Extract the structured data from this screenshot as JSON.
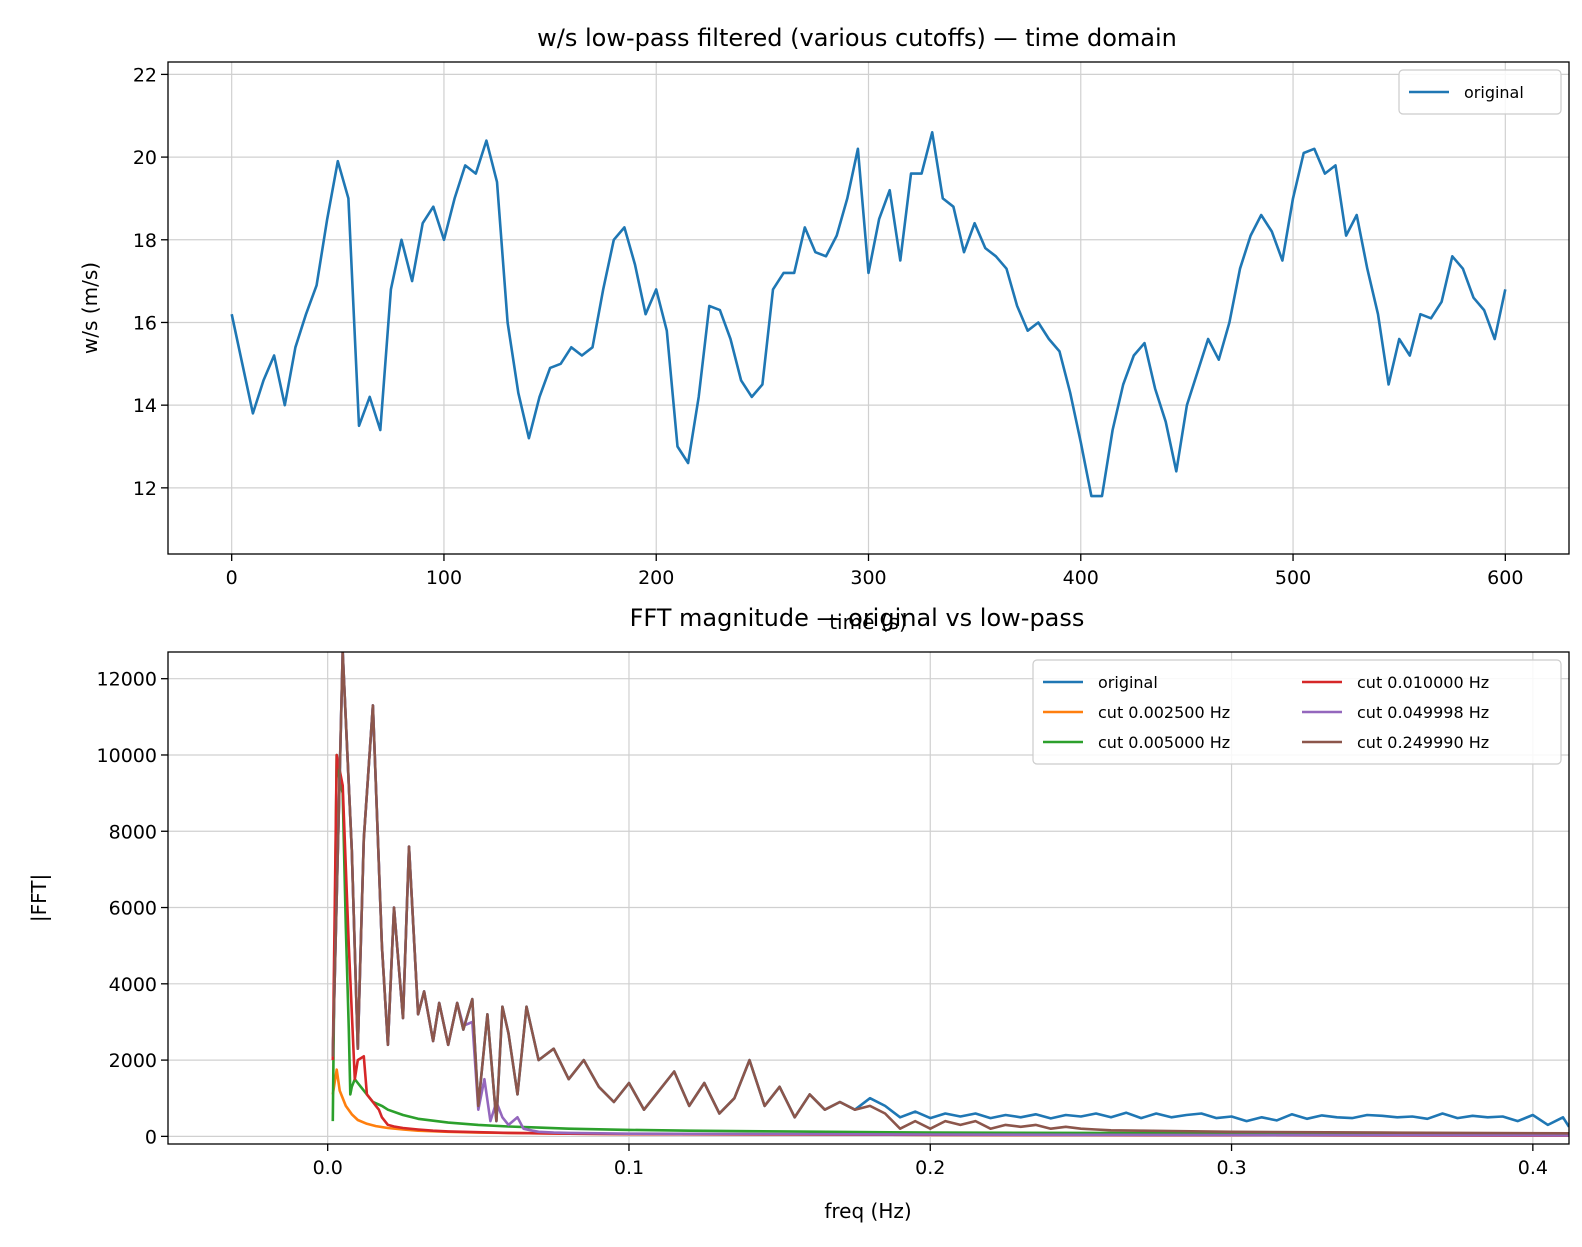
{
  "chart_data": [
    {
      "type": "line",
      "title": "w/s low-pass filtered (various cutoffs) — time domain",
      "xlabel": "time (s)",
      "ylabel": "w/s (m/s)",
      "xlim": [
        -30,
        630
      ],
      "ylim": [
        10.4,
        22.3
      ],
      "xticks": [
        0,
        100,
        200,
        300,
        400,
        500,
        600
      ],
      "yticks": [
        12,
        14,
        16,
        18,
        20,
        22
      ],
      "grid": true,
      "legend_position": "top-right",
      "series": [
        {
          "name": "original",
          "color": "#1f77b4",
          "x": [
            0,
            5,
            10,
            15,
            20,
            25,
            30,
            35,
            40,
            45,
            50,
            55,
            60,
            65,
            70,
            75,
            80,
            85,
            90,
            95,
            100,
            105,
            110,
            115,
            120,
            125,
            130,
            135,
            140,
            145,
            150,
            155,
            160,
            165,
            170,
            175,
            180,
            185,
            190,
            195,
            200,
            205,
            210,
            215,
            220,
            225,
            230,
            235,
            240,
            245,
            250,
            255,
            260,
            265,
            270,
            275,
            280,
            285,
            290,
            295,
            300,
            305,
            310,
            315,
            320,
            325,
            330,
            335,
            340,
            345,
            350,
            355,
            360,
            365,
            370,
            375,
            380,
            385,
            390,
            395,
            400,
            405,
            410,
            415,
            420,
            425,
            430,
            435,
            440,
            445,
            450,
            455,
            460,
            465,
            470,
            475,
            480,
            485,
            490,
            495,
            500,
            505,
            510,
            515,
            520,
            525,
            530,
            535,
            540,
            545,
            550,
            555,
            560,
            565,
            570,
            575,
            580,
            585,
            590,
            595,
            600
          ],
          "values": [
            16.2,
            15.0,
            13.8,
            14.6,
            15.2,
            14.0,
            15.4,
            16.2,
            16.9,
            18.5,
            19.9,
            19.0,
            13.5,
            14.2,
            13.4,
            16.8,
            18.0,
            17.0,
            18.4,
            18.8,
            18.0,
            19.0,
            19.8,
            19.6,
            20.4,
            19.4,
            16.0,
            14.3,
            13.2,
            14.2,
            14.9,
            15.0,
            15.4,
            15.2,
            15.4,
            16.8,
            18.0,
            18.3,
            17.4,
            16.2,
            16.8,
            15.8,
            13.0,
            12.6,
            14.2,
            16.4,
            16.3,
            15.6,
            14.6,
            14.2,
            14.5,
            16.8,
            17.2,
            17.2,
            18.3,
            17.7,
            17.6,
            18.1,
            19.0,
            20.2,
            17.2,
            18.5,
            19.2,
            17.5,
            19.6,
            19.6,
            20.6,
            19.0,
            18.8,
            17.7,
            18.4,
            17.8,
            17.6,
            17.3,
            16.4,
            15.8,
            16.0,
            15.6,
            15.3,
            14.3,
            13.1,
            11.8,
            11.8,
            13.4,
            14.5,
            15.2,
            15.5,
            14.4,
            13.6,
            12.4,
            14.0,
            14.8,
            15.6,
            15.1,
            16.0,
            17.3,
            18.1,
            18.6,
            18.2,
            17.5,
            19.0,
            20.1,
            20.2,
            19.6,
            19.8,
            18.1,
            18.6,
            17.3,
            16.2,
            14.5,
            15.6,
            15.2,
            16.2,
            16.1,
            16.5,
            17.6,
            17.3,
            16.6,
            16.3,
            15.6,
            16.8
          ]
        }
      ]
    },
    {
      "type": "line",
      "title": "FFT magnitude — original vs low-pass",
      "xlabel": "freq (Hz)",
      "ylabel": "|FFT|",
      "xlim": [
        -0.053,
        0.412
      ],
      "ylim": [
        -200,
        12700
      ],
      "xticks": [
        0.0,
        0.1,
        0.2,
        0.3,
        0.4
      ],
      "xtick_labels": [
        "0.0",
        "0.1",
        "0.2",
        "0.3",
        "0.4"
      ],
      "yticks": [
        0,
        2000,
        4000,
        6000,
        8000,
        10000,
        12000
      ],
      "grid": true,
      "legend_position": "top-right",
      "legend_columns": 2,
      "series": [
        {
          "name": "original",
          "color": "#1f77b4",
          "x": [
            0.0017,
            0.005,
            0.008,
            0.01,
            0.012,
            0.015,
            0.018,
            0.02,
            0.022,
            0.025,
            0.027,
            0.03,
            0.032,
            0.035,
            0.037,
            0.04,
            0.043,
            0.045,
            0.048,
            0.05,
            0.053,
            0.056,
            0.058,
            0.06,
            0.063,
            0.066,
            0.07,
            0.075,
            0.08,
            0.085,
            0.09,
            0.095,
            0.1,
            0.105,
            0.11,
            0.115,
            0.12,
            0.125,
            0.13,
            0.135,
            0.14,
            0.145,
            0.15,
            0.155,
            0.16,
            0.165,
            0.17,
            0.175,
            0.18,
            0.185,
            0.19,
            0.195,
            0.2,
            0.205,
            0.21,
            0.215,
            0.22,
            0.225,
            0.23,
            0.235,
            0.24,
            0.245,
            0.25,
            0.255,
            0.26,
            0.265,
            0.27,
            0.275,
            0.28,
            0.285,
            0.29,
            0.295,
            0.3,
            0.305,
            0.31,
            0.315,
            0.32,
            0.325,
            0.33,
            0.335,
            0.34,
            0.345,
            0.35,
            0.355,
            0.36,
            0.365,
            0.37,
            0.375,
            0.38,
            0.385,
            0.39,
            0.395,
            0.4,
            0.405,
            0.41,
            0.412
          ],
          "values": [
            2100,
            12700,
            7500,
            2300,
            7800,
            11300,
            5000,
            2400,
            6000,
            3100,
            7600,
            3200,
            3800,
            2500,
            3500,
            2400,
            3500,
            2800,
            3600,
            800,
            3200,
            400,
            3400,
            2700,
            1100,
            3400,
            2000,
            2300,
            1500,
            2000,
            1300,
            900,
            1400,
            700,
            1200,
            1700,
            800,
            1400,
            600,
            1000,
            2000,
            800,
            1300,
            500,
            1100,
            700,
            900,
            700,
            1000,
            800,
            500,
            650,
            480,
            600,
            520,
            600,
            480,
            560,
            500,
            580,
            470,
            560,
            520,
            600,
            500,
            620,
            480,
            600,
            500,
            560,
            600,
            480,
            520,
            400,
            500,
            420,
            580,
            460,
            550,
            500,
            480,
            560,
            540,
            500,
            520,
            460,
            600,
            480,
            540,
            500,
            520,
            400,
            560,
            300,
            500,
            250
          ]
        },
        {
          "name": "cut 0.002500 Hz",
          "color": "#ff7f0e",
          "x": [
            0.0017,
            0.003,
            0.004,
            0.006,
            0.008,
            0.01,
            0.013,
            0.016,
            0.02,
            0.025,
            0.03,
            0.04,
            0.05,
            0.06,
            0.07,
            0.08,
            0.1,
            0.15,
            0.2,
            0.25,
            0.3,
            0.35,
            0.412
          ],
          "values": [
            1100,
            1750,
            1200,
            800,
            580,
            430,
            330,
            270,
            220,
            180,
            150,
            120,
            100,
            90,
            80,
            70,
            60,
            50,
            40,
            35,
            30,
            25,
            20
          ]
        },
        {
          "name": "cut 0.005000 Hz",
          "color": "#2ca02c",
          "x": [
            0.0017,
            0.003,
            0.004,
            0.005,
            0.006,
            0.007,
            0.0075,
            0.008,
            0.009,
            0.01,
            0.011,
            0.012,
            0.013,
            0.015,
            0.018,
            0.02,
            0.025,
            0.03,
            0.04,
            0.05,
            0.06,
            0.07,
            0.08,
            0.1,
            0.12,
            0.15,
            0.2,
            0.25,
            0.3,
            0.35,
            0.412
          ],
          "values": [
            400,
            10000,
            9300,
            9000,
            5500,
            2800,
            1100,
            1300,
            1500,
            1400,
            1300,
            1200,
            1100,
            900,
            800,
            700,
            560,
            460,
            360,
            300,
            260,
            230,
            200,
            170,
            150,
            130,
            100,
            90,
            80,
            70,
            60
          ]
        },
        {
          "name": "cut 0.010000 Hz",
          "color": "#d62728",
          "x": [
            0.0017,
            0.003,
            0.005,
            0.007,
            0.009,
            0.01,
            0.012,
            0.013,
            0.015,
            0.016,
            0.017,
            0.018,
            0.02,
            0.022,
            0.025,
            0.03,
            0.035,
            0.04,
            0.05,
            0.06,
            0.07,
            0.08,
            0.1,
            0.15,
            0.2,
            0.25,
            0.3,
            0.35,
            0.412
          ],
          "values": [
            2000,
            10000,
            9200,
            5000,
            1500,
            2000,
            2100,
            1100,
            900,
            800,
            700,
            500,
            300,
            260,
            220,
            180,
            150,
            130,
            110,
            90,
            80,
            70,
            60,
            50,
            40,
            35,
            30,
            25,
            20
          ]
        },
        {
          "name": "cut 0.049998 Hz",
          "color": "#9467bd",
          "x": [
            0.0017,
            0.005,
            0.008,
            0.01,
            0.012,
            0.015,
            0.018,
            0.02,
            0.022,
            0.025,
            0.027,
            0.03,
            0.032,
            0.035,
            0.037,
            0.04,
            0.043,
            0.045,
            0.048,
            0.05,
            0.052,
            0.054,
            0.056,
            0.058,
            0.06,
            0.063,
            0.065,
            0.068,
            0.07,
            0.075,
            0.08,
            0.09,
            0.1,
            0.15,
            0.2,
            0.25,
            0.3,
            0.35,
            0.412
          ],
          "values": [
            2100,
            12700,
            7500,
            2300,
            7800,
            11300,
            5000,
            2400,
            6000,
            3100,
            7600,
            3200,
            3800,
            2500,
            3500,
            2400,
            3500,
            2900,
            3000,
            700,
            1500,
            400,
            900,
            500,
            300,
            500,
            200,
            150,
            120,
            100,
            90,
            80,
            70,
            60,
            50,
            40,
            35,
            30,
            25
          ]
        },
        {
          "name": "cut 0.249990 Hz",
          "color": "#8c564b",
          "x": [
            0.0017,
            0.005,
            0.008,
            0.01,
            0.012,
            0.015,
            0.018,
            0.02,
            0.022,
            0.025,
            0.027,
            0.03,
            0.032,
            0.035,
            0.037,
            0.04,
            0.043,
            0.045,
            0.048,
            0.05,
            0.053,
            0.056,
            0.058,
            0.06,
            0.063,
            0.066,
            0.07,
            0.075,
            0.08,
            0.085,
            0.09,
            0.095,
            0.1,
            0.105,
            0.11,
            0.115,
            0.12,
            0.125,
            0.13,
            0.135,
            0.14,
            0.145,
            0.15,
            0.155,
            0.16,
            0.165,
            0.17,
            0.175,
            0.18,
            0.185,
            0.19,
            0.195,
            0.2,
            0.205,
            0.21,
            0.215,
            0.22,
            0.225,
            0.23,
            0.235,
            0.24,
            0.245,
            0.25,
            0.255,
            0.26,
            0.27,
            0.28,
            0.3,
            0.35,
            0.412
          ],
          "values": [
            2100,
            12700,
            7500,
            2300,
            7800,
            11300,
            5000,
            2400,
            6000,
            3100,
            7600,
            3200,
            3800,
            2500,
            3500,
            2400,
            3500,
            2800,
            3600,
            800,
            3200,
            400,
            3400,
            2700,
            1100,
            3400,
            2000,
            2300,
            1500,
            2000,
            1300,
            900,
            1400,
            700,
            1200,
            1700,
            800,
            1400,
            600,
            1000,
            2000,
            800,
            1300,
            500,
            1100,
            700,
            900,
            700,
            800,
            600,
            200,
            400,
            200,
            400,
            300,
            400,
            200,
            300,
            250,
            300,
            200,
            250,
            200,
            180,
            160,
            150,
            140,
            120,
            100,
            80
          ]
        }
      ]
    }
  ]
}
